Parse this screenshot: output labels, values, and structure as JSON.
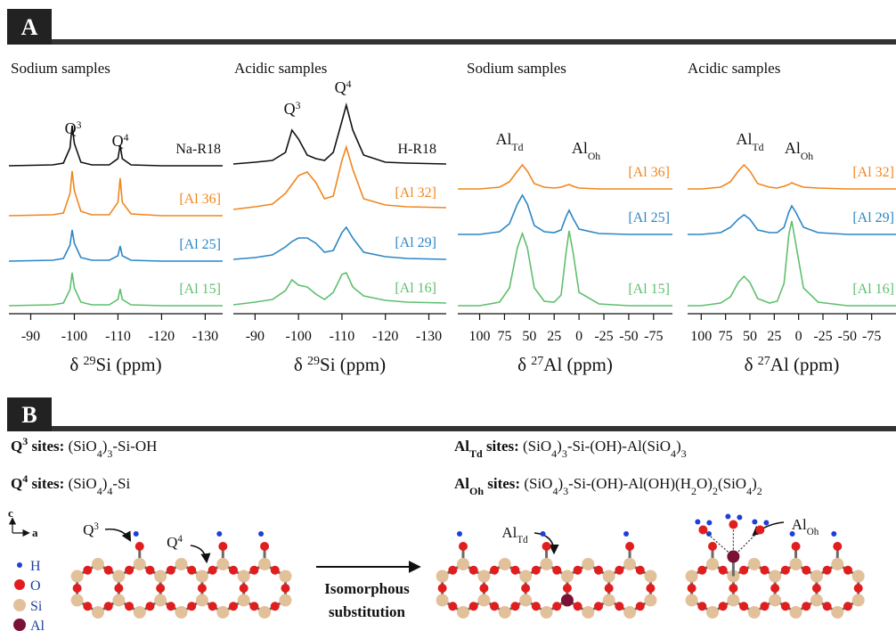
{
  "panel_labels": [
    "A",
    "B"
  ],
  "chart_data": [
    {
      "type": "line",
      "title": "Sodium samples",
      "x": [
        -85,
        -95,
        -97.5,
        -99,
        -99.5,
        -100,
        -101.5,
        -104,
        -108,
        -110,
        -110.5,
        -111,
        -113,
        -120,
        -134
      ],
      "xlim": [
        -85,
        -134
      ],
      "xticks": [
        -90,
        -100,
        -110,
        -120,
        -130
      ],
      "xlabel": {
        "pre": "δ ",
        "sup": "29",
        "post": "Si (ppm)"
      },
      "peak_labels": [
        {
          "base": "Q",
          "sup": "3"
        },
        {
          "base": "Q",
          "sup": "4"
        }
      ],
      "series": [
        {
          "name": "Na-R18",
          "color": "#111111",
          "values": [
            0,
            1,
            3,
            20,
            45,
            25,
            4,
            1,
            1,
            8,
            23,
            8,
            1,
            0,
            0
          ]
        },
        {
          "name": "[Al 36]",
          "color": "#f0861e",
          "values": [
            0,
            1,
            3,
            25,
            50,
            28,
            5,
            1,
            1,
            15,
            42,
            15,
            2,
            0,
            0
          ]
        },
        {
          "name": "[Al 25]",
          "color": "#2a86c6",
          "values": [
            0,
            1,
            3,
            18,
            35,
            20,
            4,
            1,
            1,
            6,
            17,
            6,
            1,
            0,
            0
          ]
        },
        {
          "name": "[Al 15]",
          "color": "#5fbf6e",
          "values": [
            0,
            1,
            3,
            18,
            37,
            20,
            4,
            1,
            1,
            7,
            19,
            7,
            1,
            0,
            0
          ]
        }
      ]
    },
    {
      "type": "line",
      "title": "Acidic samples",
      "x": [
        -85,
        -90,
        -94,
        -97,
        -98.5,
        -100,
        -102,
        -104,
        -106,
        -108,
        -110,
        -111,
        -112.5,
        -115,
        -120,
        -125,
        -134
      ],
      "xlim": [
        -85,
        -134
      ],
      "xticks": [
        -90,
        -100,
        -110,
        -120,
        -130
      ],
      "xlabel": {
        "pre": "δ ",
        "sup": "29",
        "post": "Si (ppm)"
      },
      "peak_labels": [
        {
          "base": "Q",
          "sup": "3"
        },
        {
          "base": "Q",
          "sup": "4"
        }
      ],
      "series": [
        {
          "name": "H-R18",
          "color": "#111111",
          "values": [
            2,
            4,
            6,
            15,
            40,
            30,
            12,
            8,
            6,
            15,
            50,
            68,
            40,
            12,
            4,
            3,
            2
          ]
        },
        {
          "name": "[Al 32]",
          "color": "#f0861e",
          "values": [
            0,
            3,
            6,
            18,
            28,
            38,
            42,
            30,
            12,
            15,
            55,
            70,
            45,
            12,
            5,
            3,
            2
          ]
        },
        {
          "name": "[Al 29]",
          "color": "#2a86c6",
          "values": [
            0,
            2,
            5,
            14,
            20,
            24,
            24,
            18,
            8,
            10,
            30,
            36,
            24,
            8,
            3,
            1,
            0
          ]
        },
        {
          "name": "[Al 16]",
          "color": "#5fbf6e",
          "values": [
            0,
            3,
            6,
            16,
            28,
            22,
            20,
            12,
            6,
            14,
            34,
            36,
            20,
            10,
            5,
            3,
            2
          ]
        }
      ]
    },
    {
      "type": "line",
      "title": "Sodium samples",
      "x": [
        122,
        100,
        80,
        70,
        62,
        57,
        52,
        45,
        35,
        25,
        18,
        13,
        10,
        6,
        0,
        -20,
        -50,
        -94
      ],
      "xlim": [
        122,
        -94
      ],
      "xticks": [
        100,
        75,
        50,
        25,
        0,
        -25,
        -50,
        -75
      ],
      "xlabel": {
        "pre": "δ ",
        "sup": "27",
        "post": "Al (ppm)"
      },
      "peak_labels": [
        {
          "base": "Al",
          "sub": "Td"
        },
        {
          "base": "Al",
          "sub": "Oh"
        }
      ],
      "series": [
        {
          "name": "[Al 36]",
          "color": "#f0861e",
          "values": [
            0,
            0,
            2,
            8,
            20,
            27,
            20,
            6,
            2,
            1,
            2,
            4,
            5,
            3,
            1,
            0,
            0,
            0
          ]
        },
        {
          "name": "[Al 25]",
          "color": "#2a86c6",
          "values": [
            0,
            0,
            3,
            12,
            34,
            44,
            34,
            10,
            3,
            2,
            5,
            20,
            27,
            18,
            6,
            1,
            0,
            0
          ]
        },
        {
          "name": "[Al 15]",
          "color": "#5fbf6e",
          "values": [
            0,
            0,
            4,
            20,
            65,
            81,
            65,
            20,
            5,
            4,
            12,
            60,
            84,
            60,
            15,
            2,
            0,
            0
          ]
        }
      ]
    },
    {
      "type": "line",
      "title": "Acidic samples",
      "x": [
        114,
        100,
        80,
        70,
        62,
        56,
        50,
        42,
        30,
        22,
        15,
        10,
        7,
        3,
        -5,
        -20,
        -50,
        -100
      ],
      "xlim": [
        114,
        -100
      ],
      "xticks": [
        100,
        75,
        50,
        25,
        0,
        -25,
        -50,
        -75
      ],
      "xlabel": {
        "pre": "δ ",
        "sup": "27",
        "post": "Al (ppm)"
      },
      "peak_labels": [
        {
          "base": "Al",
          "sub": "Td"
        },
        {
          "base": "Al",
          "sub": "Oh"
        }
      ],
      "series": [
        {
          "name": "[Al 32]",
          "color": "#f0861e",
          "values": [
            0,
            0,
            2,
            8,
            20,
            27,
            20,
            6,
            2,
            1,
            3,
            5,
            7,
            5,
            2,
            1,
            0,
            0
          ]
        },
        {
          "name": "[Al 29]",
          "color": "#2a86c6",
          "values": [
            0,
            0,
            2,
            8,
            17,
            22,
            17,
            5,
            2,
            2,
            8,
            25,
            32,
            25,
            8,
            2,
            0,
            0
          ]
        },
        {
          "name": "[Al 16]",
          "color": "#5fbf6e",
          "values": [
            0,
            0,
            3,
            10,
            26,
            33,
            26,
            8,
            3,
            5,
            25,
            80,
            95,
            70,
            20,
            4,
            0,
            0
          ]
        }
      ]
    }
  ],
  "sites": [
    [
      [
        "Q",
        "b"
      ],
      [
        "3",
        "bsup"
      ],
      [
        " sites:",
        "b"
      ],
      [
        " (SiO",
        "n"
      ],
      [
        "4",
        "sub"
      ],
      [
        ")",
        "n"
      ],
      [
        "3",
        "sub"
      ],
      [
        "-Si-OH",
        "n"
      ]
    ],
    [
      [
        "Q",
        "b"
      ],
      [
        "4",
        "bsup"
      ],
      [
        " sites:",
        "b"
      ],
      [
        " (SiO",
        "n"
      ],
      [
        "4",
        "sub"
      ],
      [
        ")",
        "n"
      ],
      [
        "4",
        "sub"
      ],
      [
        "-Si",
        "n"
      ]
    ],
    [
      [
        "Al",
        "b"
      ],
      [
        "Td",
        "bsub"
      ],
      [
        " sites:",
        "b"
      ],
      [
        " (SiO",
        "n"
      ],
      [
        "4",
        "sub"
      ],
      [
        ")",
        "n"
      ],
      [
        "3",
        "sub"
      ],
      [
        "-Si-(OH)-Al(SiO",
        "n"
      ],
      [
        "4",
        "sub"
      ],
      [
        ")",
        "n"
      ],
      [
        "3",
        "sub"
      ]
    ],
    [
      [
        "Al",
        "b"
      ],
      [
        "Oh",
        "bsub"
      ],
      [
        " sites:",
        "b"
      ],
      [
        " (SiO",
        "n"
      ],
      [
        "4",
        "sub"
      ],
      [
        ")",
        "n"
      ],
      [
        "3",
        "sub"
      ],
      [
        "-Si-(OH)-Al(OH)(H",
        "n"
      ],
      [
        "2",
        "sub"
      ],
      [
        "O)",
        "n"
      ],
      [
        "2",
        "sub"
      ],
      [
        "(SiO",
        "n"
      ],
      [
        "4",
        "sub"
      ],
      [
        ")",
        "n"
      ],
      [
        "2",
        "sub"
      ]
    ]
  ],
  "structure": {
    "axes": [
      "c",
      "a"
    ],
    "legend": [
      "H",
      "O",
      "Si",
      "Al"
    ],
    "site_labels": [
      {
        "base": "Q",
        "sup": "3"
      },
      {
        "base": "Q",
        "sup": "4"
      },
      {
        "base": "Al",
        "sub": "Td"
      },
      {
        "base": "Al",
        "sub": "Oh"
      }
    ],
    "arrow_text": [
      "Isomorphous",
      "substitution"
    ]
  }
}
